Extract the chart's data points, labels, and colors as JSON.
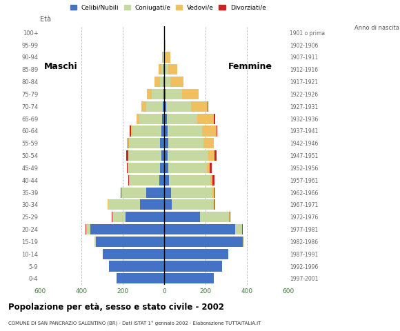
{
  "age_groups": [
    "0-4",
    "5-9",
    "10-14",
    "15-19",
    "20-24",
    "25-29",
    "30-34",
    "35-39",
    "40-44",
    "45-49",
    "50-54",
    "55-59",
    "60-64",
    "65-69",
    "70-74",
    "75-79",
    "80-84",
    "85-89",
    "90-94",
    "95-99",
    "100+"
  ],
  "birth_years": [
    "1997-2001",
    "1992-1996",
    "1987-1991",
    "1982-1986",
    "1977-1981",
    "1972-1976",
    "1967-1971",
    "1962-1966",
    "1957-1961",
    "1952-1956",
    "1947-1951",
    "1942-1946",
    "1937-1941",
    "1932-1936",
    "1927-1931",
    "1922-1926",
    "1917-1921",
    "1912-1916",
    "1907-1911",
    "1902-1906",
    "1901 o prima"
  ],
  "males": {
    "celibe": [
      230,
      265,
      295,
      330,
      355,
      185,
      115,
      85,
      22,
      18,
      12,
      18,
      12,
      8,
      5,
      4,
      2,
      2,
      0,
      0,
      0
    ],
    "coniugato": [
      0,
      0,
      2,
      5,
      22,
      65,
      155,
      120,
      145,
      155,
      160,
      150,
      140,
      110,
      80,
      55,
      18,
      10,
      5,
      0,
      0
    ],
    "vedovo": [
      0,
      0,
      0,
      0,
      1,
      1,
      2,
      2,
      2,
      2,
      2,
      5,
      8,
      15,
      25,
      25,
      25,
      15,
      5,
      0,
      0
    ],
    "divorziato": [
      0,
      0,
      0,
      0,
      1,
      2,
      2,
      2,
      5,
      5,
      8,
      2,
      5,
      0,
      0,
      0,
      0,
      0,
      0,
      0,
      0
    ]
  },
  "females": {
    "nubile": [
      240,
      280,
      310,
      380,
      345,
      175,
      38,
      35,
      25,
      22,
      18,
      20,
      18,
      15,
      12,
      8,
      5,
      5,
      2,
      0,
      0
    ],
    "coniugata": [
      0,
      0,
      2,
      8,
      32,
      140,
      200,
      200,
      200,
      185,
      195,
      170,
      165,
      145,
      120,
      80,
      25,
      15,
      5,
      0,
      0
    ],
    "vedova": [
      0,
      0,
      0,
      0,
      2,
      3,
      5,
      8,
      10,
      15,
      30,
      50,
      70,
      80,
      80,
      80,
      65,
      45,
      25,
      8,
      2
    ],
    "divorziata": [
      0,
      0,
      0,
      0,
      2,
      3,
      5,
      5,
      8,
      8,
      10,
      2,
      5,
      8,
      2,
      0,
      0,
      0,
      0,
      0,
      0
    ]
  },
  "colors": {
    "celibe": "#4472c4",
    "coniugato": "#c5d9a0",
    "vedovo": "#f0c060",
    "divorziato": "#cc2222"
  },
  "title": "Popolazione per età, sesso e stato civile - 2002",
  "subtitle": "COMUNE DI SAN PANCRAZIO SALENTINO (BR) · Dati ISTAT 1° gennaio 2002 · Elaborazione TUTTAITALIA.IT",
  "label_maschi": "Maschi",
  "label_femmine": "Femmine",
  "legend_labels": [
    "Celibi/Nubili",
    "Coniugati/e",
    "Vedovi/e",
    "Divorziati/e"
  ],
  "xlim": 600,
  "background_color": "#ffffff",
  "grid_color": "#bbbbbb"
}
